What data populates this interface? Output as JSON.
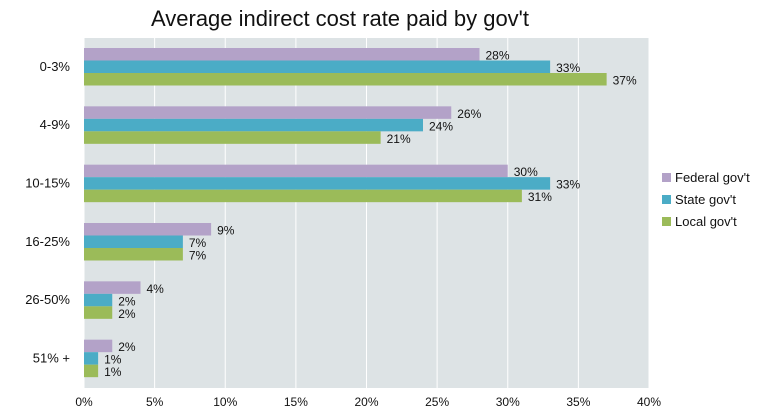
{
  "chart_data": {
    "type": "bar",
    "orientation": "horizontal",
    "title": "Average indirect cost rate paid by gov't",
    "xlabel": "",
    "ylabel": "",
    "categories": [
      "0-3%",
      "4-9%",
      "10-15%",
      "16-25%",
      "26-50%",
      "51% +"
    ],
    "series": [
      {
        "name": "Federal gov't",
        "color": "#b3a2c8",
        "values": [
          28,
          26,
          30,
          9,
          4,
          2
        ],
        "value_labels": [
          "28%",
          "26%",
          "30%",
          "9%",
          "4%",
          "2%"
        ]
      },
      {
        "name": "State gov't",
        "color": "#4bacc6",
        "values": [
          33,
          24,
          33,
          7,
          2,
          1
        ],
        "value_labels": [
          "33%",
          "24%",
          "33%",
          "7%",
          "2%",
          "1%"
        ]
      },
      {
        "name": "Local gov't",
        "color": "#9bbb59",
        "values": [
          37,
          21,
          31,
          7,
          2,
          1
        ],
        "value_labels": [
          "37%",
          "21%",
          "31%",
          "7%",
          "2%",
          "1%"
        ]
      }
    ],
    "xlim": [
      0,
      40
    ],
    "x_ticks": [
      0,
      5,
      10,
      15,
      20,
      25,
      30,
      35,
      40
    ],
    "x_tick_labels": [
      "0%",
      "5%",
      "10%",
      "15%",
      "20%",
      "25%",
      "30%",
      "35%",
      "40%"
    ],
    "grid": true,
    "legend_position": "right",
    "plot_background": "#dde3e5",
    "grid_color": "#ffffff"
  }
}
